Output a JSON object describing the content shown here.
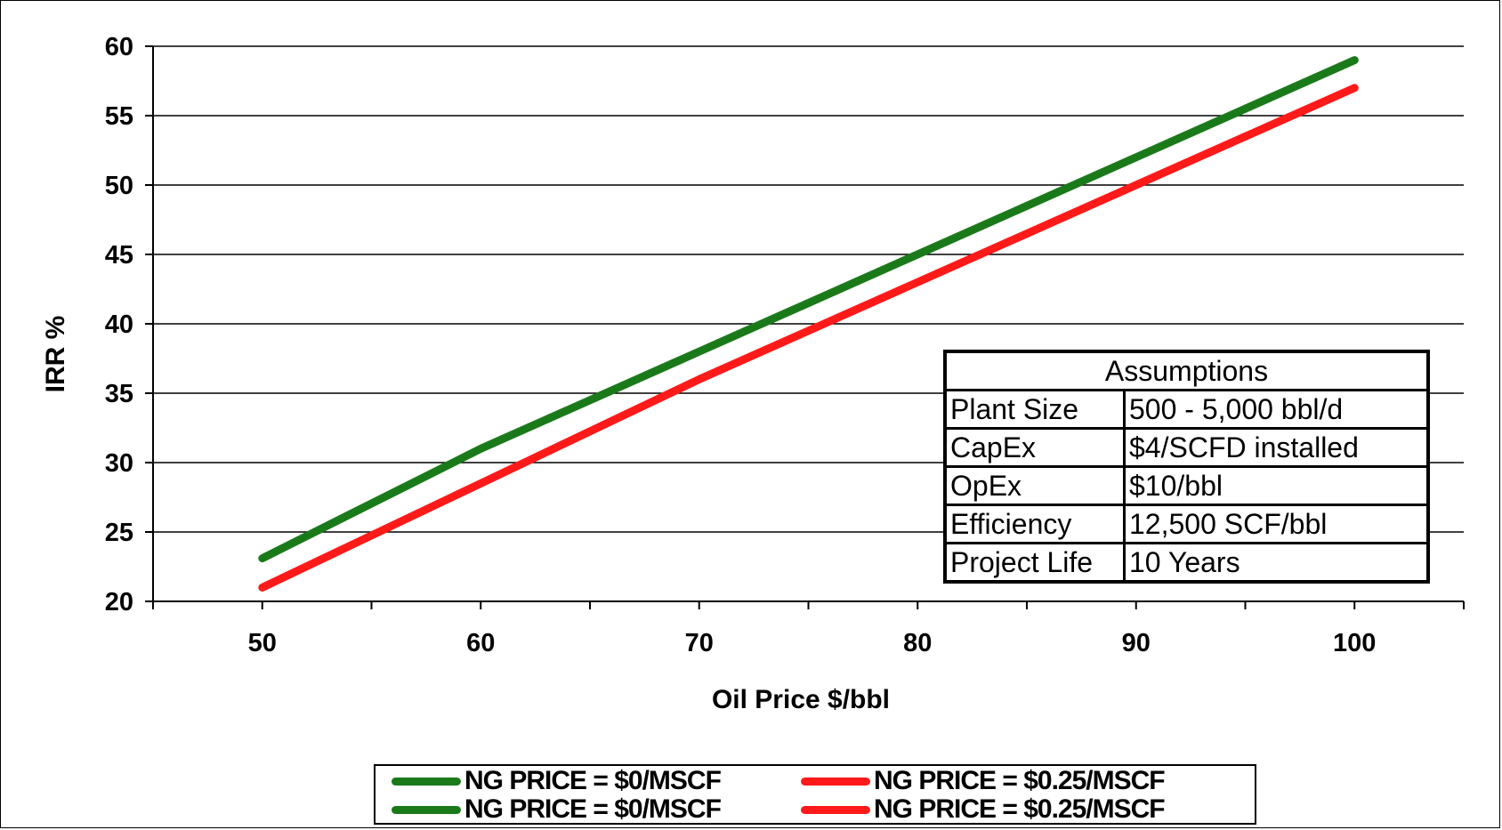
{
  "chart_data": {
    "type": "line",
    "xlabel": "Oil Price $/bbl",
    "ylabel": "IRR %",
    "xlim": [
      45,
      105
    ],
    "ylim": [
      20,
      60
    ],
    "x_ticks": [
      50,
      60,
      70,
      80,
      90,
      100
    ],
    "y_ticks": [
      20,
      25,
      30,
      35,
      40,
      45,
      50,
      55,
      60
    ],
    "grid": "horizontal",
    "legend_position": "bottom",
    "series": [
      {
        "name": "NG PRICE = $0/MSCF",
        "color": "#1a7a1a",
        "x": [
          50,
          60,
          70,
          80,
          90,
          100
        ],
        "y": [
          23.1,
          31,
          38,
          45,
          52,
          59
        ]
      },
      {
        "name": "NG PRICE = $0.25/MSCF",
        "color": "#ff1a1a",
        "x": [
          50,
          60,
          70,
          80,
          90,
          100
        ],
        "y": [
          21,
          28.5,
          36,
          43,
          50,
          57
        ]
      }
    ]
  },
  "assumptions": {
    "title": "Assumptions",
    "rows": [
      {
        "label": "Plant Size",
        "value": "500 - 5,000 bbl/d"
      },
      {
        "label": "CapEx",
        "value": "$4/SCFD installed"
      },
      {
        "label": "OpEx",
        "value": "$10/bbl"
      },
      {
        "label": "Efficiency",
        "value": "12,500 SCF/bbl"
      },
      {
        "label": "Project Life",
        "value": "10 Years"
      }
    ]
  },
  "legend": {
    "entries": [
      {
        "label": "NG PRICE = $0/MSCF",
        "color": "#1a7a1a"
      },
      {
        "label": "NG PRICE = $0.25/MSCF",
        "color": "#ff1a1a"
      },
      {
        "label": "NG PRICE = $0/MSCF",
        "color": "#1a7a1a"
      },
      {
        "label": "NG PRICE = $0.25/MSCF",
        "color": "#ff1a1a"
      }
    ]
  }
}
